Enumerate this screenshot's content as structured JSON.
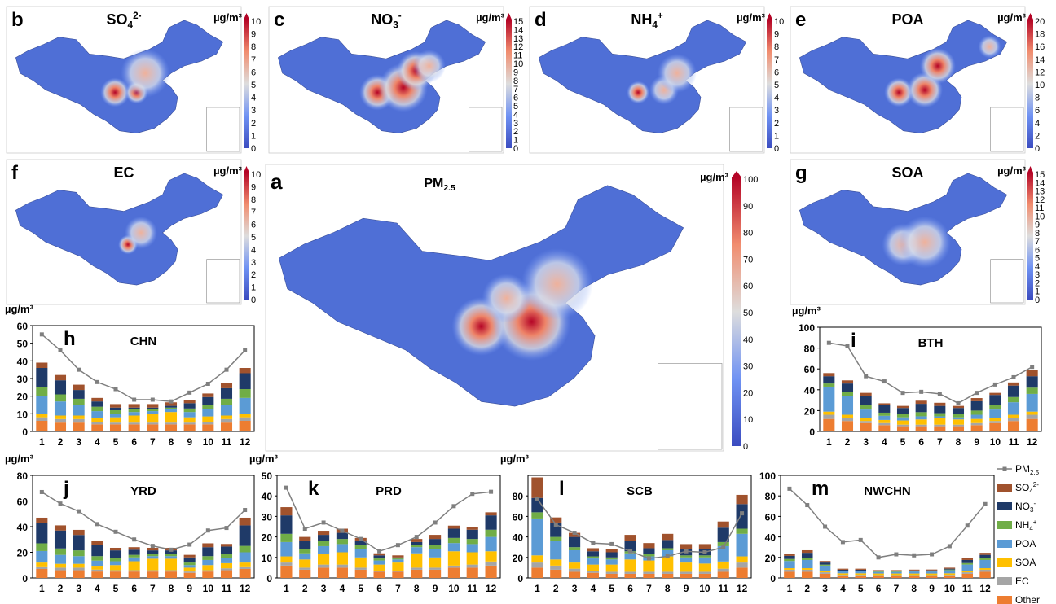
{
  "maps": [
    {
      "letter": "b",
      "title": "SO",
      "title_sub": "4",
      "title_sup": "2-",
      "unit": "µg/m³",
      "scale": [
        0,
        10
      ],
      "ticks": [
        "0",
        "1",
        "2",
        "3",
        "4",
        "5",
        "6",
        "7",
        "8",
        "9",
        "10"
      ]
    },
    {
      "letter": "c",
      "title": "NO",
      "title_sub": "3",
      "title_sup": "-",
      "unit": "µg/m³",
      "scale": [
        0,
        15
      ],
      "ticks": [
        "0",
        "1",
        "2",
        "3",
        "4",
        "5",
        "6",
        "7",
        "8",
        "9",
        "10",
        "11",
        "12",
        "13",
        "14",
        "15"
      ]
    },
    {
      "letter": "d",
      "title": "NH",
      "title_sub": "4",
      "title_sup": "+",
      "unit": "µg/m³",
      "scale": [
        0,
        10
      ],
      "ticks": [
        "0",
        "1",
        "2",
        "3",
        "4",
        "5",
        "6",
        "7",
        "8",
        "9",
        "10"
      ]
    },
    {
      "letter": "e",
      "title": "POA",
      "title_sub": "",
      "title_sup": "",
      "unit": "µg/m³",
      "scale": [
        0,
        20
      ],
      "ticks": [
        "0",
        "2",
        "4",
        "6",
        "8",
        "10",
        "12",
        "14",
        "16",
        "18",
        "20"
      ]
    },
    {
      "letter": "f",
      "title": "EC",
      "title_sub": "",
      "title_sup": "",
      "unit": "µg/m³",
      "scale": [
        0,
        10
      ],
      "ticks": [
        "0",
        "1",
        "2",
        "3",
        "4",
        "5",
        "6",
        "7",
        "8",
        "9",
        "10"
      ]
    },
    {
      "letter": "a",
      "title": "PM",
      "title_sub": "2.5",
      "title_sup": "",
      "unit": "µg/m³",
      "scale": [
        0,
        100
      ],
      "ticks": [
        "0",
        "10",
        "20",
        "30",
        "40",
        "50",
        "60",
        "70",
        "80",
        "90",
        "100"
      ]
    },
    {
      "letter": "g",
      "title": "SOA",
      "title_sub": "",
      "title_sup": "",
      "unit": "µg/m³",
      "scale": [
        0,
        15
      ],
      "ticks": [
        "0",
        "1",
        "2",
        "3",
        "4",
        "5",
        "6",
        "7",
        "8",
        "9",
        "10",
        "11",
        "12",
        "13",
        "14",
        "15"
      ]
    }
  ],
  "legend": {
    "pm_label": "PM",
    "pm_sub": "2.5",
    "items": [
      {
        "name": "SO",
        "sub": "4",
        "sup": "2-",
        "color": "#A0522D"
      },
      {
        "name": "NO",
        "sub": "3",
        "sup": "-",
        "color": "#1F3A68"
      },
      {
        "name": "NH",
        "sub": "4",
        "sup": "+",
        "color": "#70AD47"
      },
      {
        "name": "POA",
        "sub": "",
        "sup": "",
        "color": "#5B9BD5"
      },
      {
        "name": "SOA",
        "sub": "",
        "sup": "",
        "color": "#FFC000"
      },
      {
        "name": "EC",
        "sub": "",
        "sup": "",
        "color": "#A5A5A5"
      },
      {
        "name": "Other",
        "sub": "",
        "sup": "",
        "color": "#ED7D31"
      }
    ]
  },
  "chart_data": [
    {
      "type": "bar",
      "letter": "h",
      "title": "CHN",
      "ylabel": "µg/m³",
      "ylim": [
        0,
        60
      ],
      "yticks": [
        0,
        10,
        20,
        30,
        40,
        50,
        60
      ],
      "categories": [
        "1",
        "2",
        "3",
        "4",
        "5",
        "6",
        "7",
        "8",
        "9",
        "10",
        "11",
        "12"
      ],
      "pm25": [
        55,
        46,
        35,
        28,
        24,
        18,
        18,
        17,
        22,
        27,
        35,
        46
      ],
      "series": [
        {
          "name": "Other",
          "values": [
            6,
            5,
            5,
            4,
            4,
            4,
            4,
            4,
            4,
            4,
            5,
            6
          ]
        },
        {
          "name": "EC",
          "values": [
            2,
            2,
            2,
            1.5,
            1,
            1,
            1,
            1,
            1,
            1.5,
            2,
            2
          ]
        },
        {
          "name": "SOA",
          "values": [
            2,
            2,
            2,
            2,
            3,
            4,
            5,
            6,
            3,
            3,
            2,
            2
          ]
        },
        {
          "name": "POA",
          "values": [
            10,
            8,
            6,
            4,
            2,
            2,
            1.5,
            1.5,
            3,
            4,
            6,
            9
          ]
        },
        {
          "name": "NH4+",
          "values": [
            5,
            4,
            3.5,
            2.5,
            2,
            1.5,
            1,
            1,
            2,
            2.5,
            3.5,
            5
          ]
        },
        {
          "name": "NO3-",
          "values": [
            11,
            8,
            5,
            3,
            1.5,
            1,
            1,
            1,
            3,
            4.5,
            6,
            9
          ]
        },
        {
          "name": "SO42-",
          "values": [
            3,
            3,
            3,
            2,
            2,
            2,
            2,
            2,
            2,
            2,
            3,
            3
          ]
        }
      ]
    },
    {
      "type": "bar",
      "letter": "i",
      "title": "BTH",
      "ylabel": "µg/m³",
      "ylim": [
        0,
        100
      ],
      "yticks": [
        0,
        20,
        40,
        60,
        80,
        100
      ],
      "categories": [
        "1",
        "2",
        "3",
        "4",
        "5",
        "6",
        "7",
        "8",
        "9",
        "10",
        "11",
        "12"
      ],
      "pm25": [
        85,
        82,
        53,
        48,
        37,
        38,
        36,
        27,
        37,
        45,
        52,
        62
      ],
      "series": [
        {
          "name": "Other",
          "values": [
            12,
            10,
            8,
            6,
            5,
            5,
            5,
            5,
            6,
            8,
            10,
            12
          ]
        },
        {
          "name": "EC",
          "values": [
            4,
            3,
            2,
            2,
            1.5,
            1.5,
            1.5,
            1.5,
            2,
            2,
            3,
            4
          ]
        },
        {
          "name": "SOA",
          "values": [
            3,
            3,
            3,
            3,
            4,
            5,
            6,
            5,
            4,
            3,
            3,
            3
          ]
        },
        {
          "name": "POA",
          "values": [
            24,
            18,
            8,
            4,
            3,
            3,
            2,
            2,
            4,
            8,
            12,
            17
          ]
        },
        {
          "name": "NH4+",
          "values": [
            3,
            4,
            4,
            3,
            3,
            4,
            3,
            3,
            4,
            4,
            5,
            6
          ]
        },
        {
          "name": "NO3-",
          "values": [
            7,
            8,
            9,
            7,
            6,
            8,
            7,
            6,
            9,
            10,
            11,
            11
          ]
        },
        {
          "name": "SO42-",
          "values": [
            3,
            3,
            3,
            2,
            2,
            3,
            3,
            2,
            3,
            2,
            3,
            6
          ]
        }
      ]
    },
    {
      "type": "bar",
      "letter": "j",
      "title": "YRD",
      "ylabel": "µg/m³",
      "ylim": [
        0,
        80
      ],
      "yticks": [
        0,
        20,
        40,
        60,
        80
      ],
      "categories": [
        "1",
        "2",
        "3",
        "4",
        "5",
        "6",
        "7",
        "8",
        "9",
        "10",
        "11",
        "12"
      ],
      "pm25": [
        67,
        58,
        52,
        42,
        36,
        30,
        25,
        22,
        26,
        37,
        39,
        53
      ],
      "series": [
        {
          "name": "Other",
          "values": [
            7,
            6,
            6,
            5,
            5,
            5,
            5,
            5,
            4,
            5,
            6,
            7
          ]
        },
        {
          "name": "EC",
          "values": [
            2,
            2,
            2,
            1.5,
            1,
            1,
            1,
            1,
            1,
            1,
            1.5,
            2
          ]
        },
        {
          "name": "SOA",
          "values": [
            3,
            3,
            3,
            3,
            4,
            7,
            9,
            9,
            3,
            4,
            4,
            3
          ]
        },
        {
          "name": "POA",
          "values": [
            9,
            7,
            6,
            4,
            3,
            3,
            2,
            2,
            2,
            4,
            4,
            8
          ]
        },
        {
          "name": "NH4+",
          "values": [
            6,
            5,
            4.5,
            3.5,
            2.5,
            2,
            1.5,
            1.5,
            2,
            3,
            3,
            5
          ]
        },
        {
          "name": "NO3-",
          "values": [
            16,
            14,
            12,
            9,
            6,
            4,
            3,
            3,
            4,
            7,
            6,
            16
          ]
        },
        {
          "name": "SO42-",
          "values": [
            4,
            4,
            4,
            3,
            2,
            2,
            2,
            2,
            2,
            3,
            2,
            6
          ]
        }
      ]
    },
    {
      "type": "bar",
      "letter": "k",
      "title": "PRD",
      "ylabel": "µg/m³",
      "ylim": [
        0,
        50
      ],
      "yticks": [
        0,
        10,
        20,
        30,
        40,
        50
      ],
      "categories": [
        "1",
        "2",
        "3",
        "4",
        "5",
        "6",
        "7",
        "8",
        "9",
        "10",
        "11",
        "12"
      ],
      "pm25": [
        44,
        24,
        27,
        23,
        19,
        13,
        16,
        20,
        27,
        35,
        41,
        42
      ],
      "series": [
        {
          "name": "Other",
          "values": [
            6,
            4,
            5,
            5,
            4,
            3,
            3,
            4,
            4,
            5,
            5,
            6
          ]
        },
        {
          "name": "EC",
          "values": [
            1.5,
            1,
            1.5,
            1.5,
            1,
            0.5,
            0.5,
            1,
            1,
            1,
            1.5,
            2
          ]
        },
        {
          "name": "SOA",
          "values": [
            3,
            4,
            5,
            6,
            5,
            3,
            4,
            7,
            5,
            7,
            6,
            5
          ]
        },
        {
          "name": "POA",
          "values": [
            7,
            3,
            4,
            4,
            4,
            2,
            1.5,
            3,
            4,
            4,
            4,
            7
          ]
        },
        {
          "name": "NH4+",
          "values": [
            4,
            2,
            2.5,
            2.5,
            2,
            1,
            0.5,
            1,
            2,
            2.5,
            2.5,
            3.5
          ]
        },
        {
          "name": "NO3-",
          "values": [
            9,
            4,
            3,
            3,
            2,
            1.5,
            0.5,
            1.5,
            3,
            4.5,
            4.5,
            7
          ]
        },
        {
          "name": "SO42-",
          "values": [
            4,
            2,
            2,
            2,
            1.5,
            1,
            1,
            1.5,
            2,
            1.5,
            1.5,
            1.5
          ]
        }
      ]
    },
    {
      "type": "bar",
      "letter": "l",
      "title": "SCB",
      "ylabel": "µg/m³",
      "ylim": [
        0,
        100
      ],
      "yticks": [
        0,
        20,
        40,
        60,
        80
      ],
      "categories": [
        "1",
        "2",
        "3",
        "4",
        "5",
        "6",
        "7",
        "8",
        "9",
        "10",
        "11",
        "12"
      ],
      "pm25": [
        77,
        52,
        44,
        34,
        33,
        26,
        19,
        21,
        26,
        25,
        30,
        63
      ],
      "series": [
        {
          "name": "Other",
          "values": [
            10,
            8,
            6,
            5,
            4,
            4,
            4,
            4,
            4,
            4,
            6,
            10
          ]
        },
        {
          "name": "EC",
          "values": [
            5,
            4,
            3,
            2,
            2,
            2,
            2,
            2,
            2,
            2,
            3,
            5
          ]
        },
        {
          "name": "SOA",
          "values": [
            7,
            6,
            6,
            6,
            7,
            12,
            11,
            15,
            9,
            8,
            7,
            6
          ]
        },
        {
          "name": "POA",
          "values": [
            36,
            18,
            12,
            6,
            5,
            6,
            4,
            6,
            5,
            6,
            15,
            22
          ]
        },
        {
          "name": "NH4+",
          "values": [
            6,
            4,
            3,
            2,
            2,
            2,
            2,
            2,
            2,
            2,
            4,
            5
          ]
        },
        {
          "name": "NO3-",
          "values": [
            14,
            14,
            10,
            5,
            5,
            10,
            6,
            8,
            6,
            6,
            14,
            24
          ]
        },
        {
          "name": "SO42-",
          "values": [
            20,
            5,
            4,
            3,
            3,
            6,
            5,
            6,
            5,
            5,
            6,
            9
          ]
        }
      ]
    },
    {
      "type": "bar",
      "letter": "m",
      "title": "NWCHN",
      "ylabel": "",
      "ylim": [
        0,
        100
      ],
      "yticks": [
        0,
        20,
        40,
        60,
        80,
        100
      ],
      "categories": [
        "1",
        "2",
        "3",
        "4",
        "5",
        "6",
        "7",
        "8",
        "9",
        "10",
        "11",
        "12"
      ],
      "pm25": [
        87,
        71,
        50,
        35,
        37,
        20,
        23,
        22,
        23,
        31,
        51,
        72
      ],
      "series": [
        {
          "name": "Other",
          "values": [
            6,
            6,
            4,
            2,
            2,
            2,
            2,
            2,
            2,
            2,
            4,
            6
          ]
        },
        {
          "name": "EC",
          "values": [
            2,
            2,
            1.5,
            1,
            1,
            0.8,
            0.8,
            0.8,
            0.8,
            1,
            1.5,
            2
          ]
        },
        {
          "name": "SOA",
          "values": [
            1.5,
            1.5,
            1.5,
            1.5,
            1.5,
            1.5,
            1.5,
            1.5,
            1.5,
            1.5,
            1.5,
            1.5
          ]
        },
        {
          "name": "POA",
          "values": [
            7,
            8,
            5,
            2,
            2,
            1.5,
            1.5,
            2,
            2,
            3,
            6,
            8
          ]
        },
        {
          "name": "NH4+",
          "values": [
            2,
            2,
            1,
            0.5,
            0.5,
            0.5,
            0.5,
            0.5,
            0.5,
            0.7,
            1.5,
            2
          ]
        },
        {
          "name": "NO3-",
          "values": [
            3,
            5,
            2,
            1,
            1,
            0.5,
            0.5,
            0.5,
            0.6,
            0.8,
            3,
            3
          ]
        },
        {
          "name": "SO42-",
          "values": [
            2,
            2.5,
            1.5,
            1,
            1,
            0.8,
            0.8,
            0.8,
            0.8,
            1,
            2,
            2
          ]
        }
      ]
    }
  ]
}
